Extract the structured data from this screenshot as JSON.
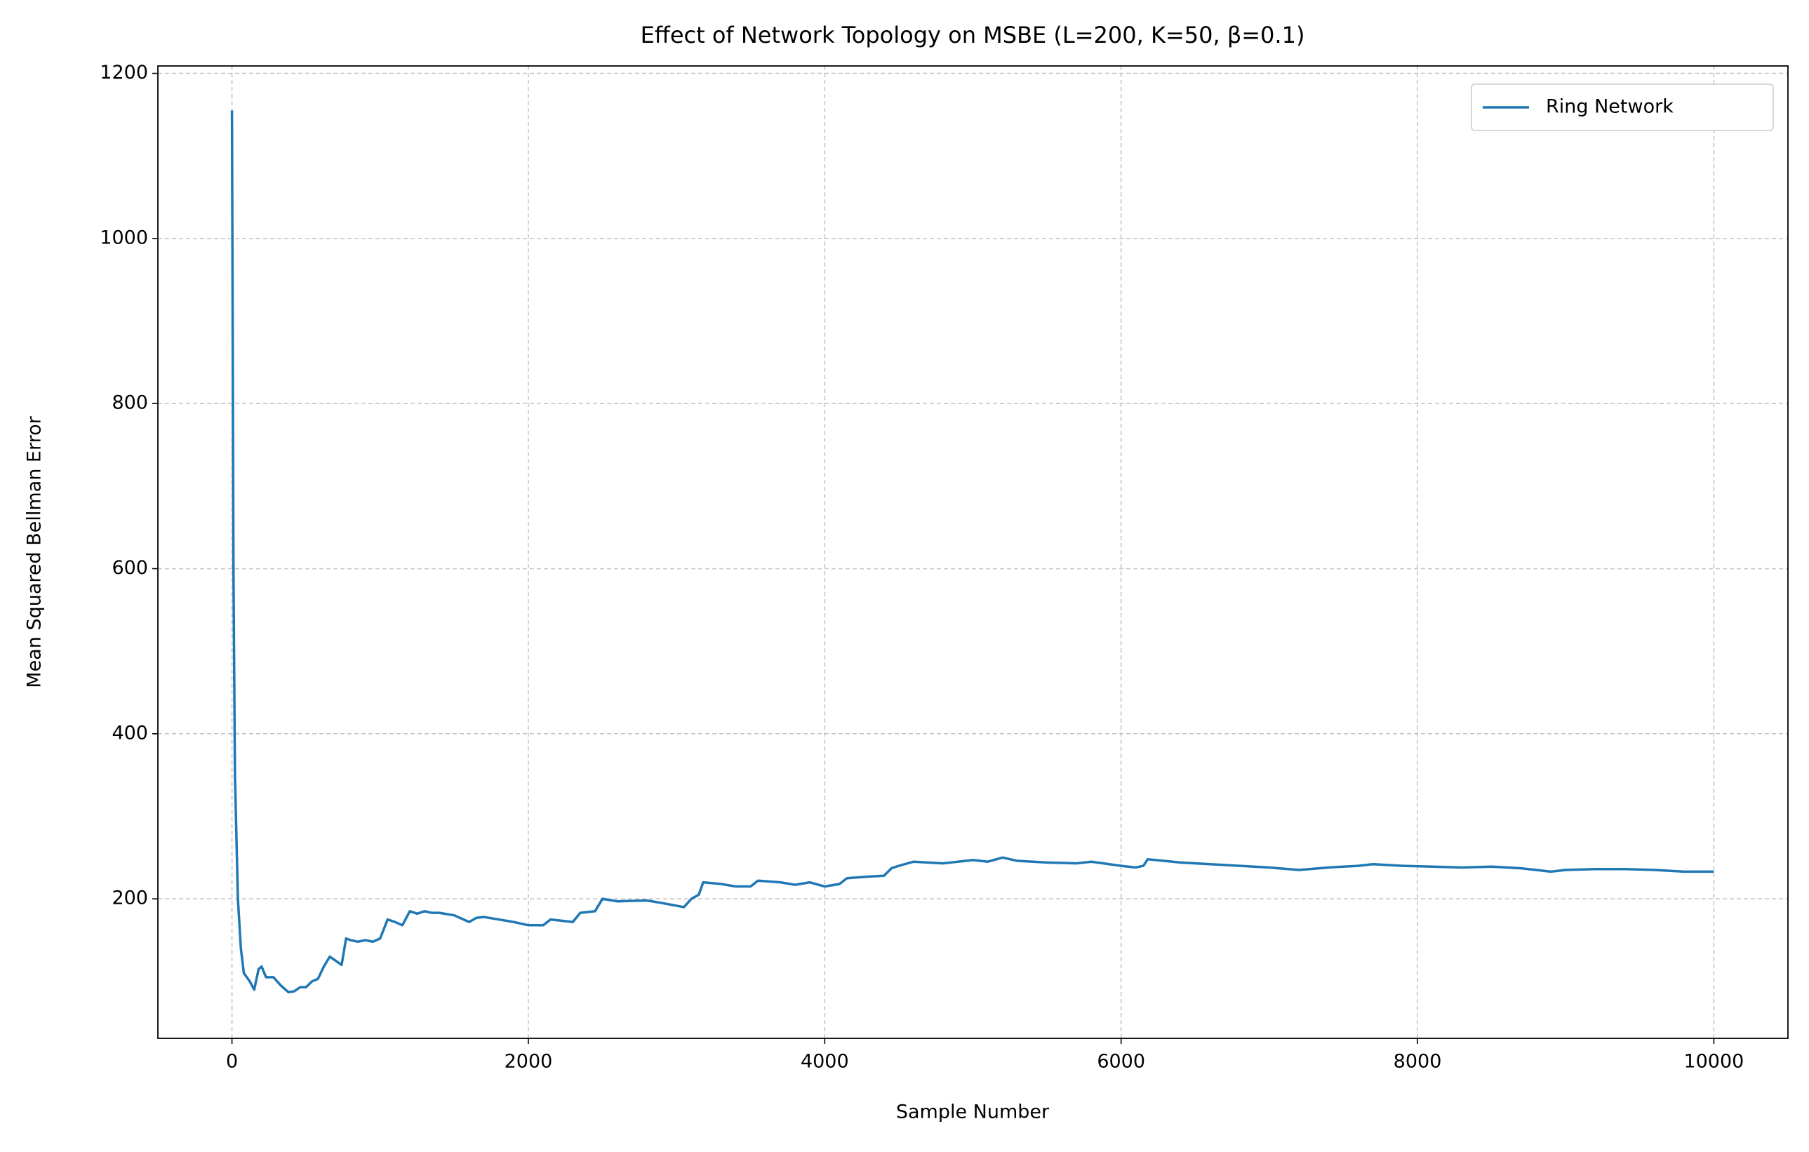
{
  "chart_data": {
    "type": "line",
    "title": "Effect of Network Topology on MSBE (L=200, K=50, β=0.1)",
    "x_label": "Sample Number",
    "y_label": "Mean Squared Bellman Error",
    "x": [
      0,
      10,
      20,
      40,
      60,
      80,
      100,
      120,
      150,
      180,
      200,
      230,
      280,
      330,
      380,
      420,
      460,
      500,
      540,
      580,
      620,
      660,
      700,
      740,
      770,
      800,
      850,
      900,
      950,
      1000,
      1050,
      1100,
      1150,
      1200,
      1250,
      1300,
      1350,
      1400,
      1500,
      1600,
      1650,
      1700,
      1800,
      1900,
      2000,
      2100,
      2150,
      2300,
      2350,
      2450,
      2500,
      2600,
      2800,
      2900,
      3050,
      3100,
      3150,
      3180,
      3300,
      3400,
      3500,
      3550,
      3700,
      3800,
      3900,
      4000,
      4100,
      4150,
      4300,
      4400,
      4450,
      4500,
      4600,
      4800,
      5000,
      5100,
      5200,
      5300,
      5500,
      5700,
      5800,
      6000,
      6100,
      6150,
      6180,
      6400,
      6600,
      6800,
      7000,
      7200,
      7400,
      7600,
      7700,
      7900,
      8100,
      8300,
      8500,
      8700,
      8900,
      9000,
      9200,
      9400,
      9600,
      9800,
      10000
    ],
    "series": [
      {
        "name": "Ring Network",
        "color": "#1f77b4",
        "values": [
          1155,
          600,
          350,
          200,
          140,
          110,
          105,
          100,
          90,
          115,
          118,
          105,
          105,
          95,
          87,
          88,
          93,
          93,
          100,
          103,
          118,
          130,
          125,
          120,
          152,
          150,
          148,
          150,
          148,
          152,
          175,
          172,
          168,
          185,
          182,
          185,
          183,
          183,
          180,
          172,
          177,
          178,
          175,
          172,
          168,
          168,
          175,
          172,
          183,
          185,
          200,
          197,
          198,
          195,
          190,
          200,
          205,
          220,
          218,
          215,
          215,
          222,
          220,
          217,
          220,
          215,
          218,
          225,
          227,
          228,
          237,
          240,
          245,
          243,
          247,
          245,
          250,
          246,
          244,
          243,
          245,
          240,
          238,
          240,
          248,
          244,
          242,
          240,
          238,
          235,
          238,
          240,
          242,
          240,
          239,
          238,
          239,
          237,
          233,
          235,
          236,
          236,
          235,
          233,
          233
        ]
      }
    ],
    "xlim": [
      -500,
      10500
    ],
    "ylim": [
      31,
      1209
    ],
    "xticks": [
      0,
      2000,
      4000,
      6000,
      8000,
      10000
    ],
    "yticks": [
      200,
      400,
      600,
      800,
      1000,
      1200
    ],
    "grid": true,
    "legend": "upper right"
  }
}
